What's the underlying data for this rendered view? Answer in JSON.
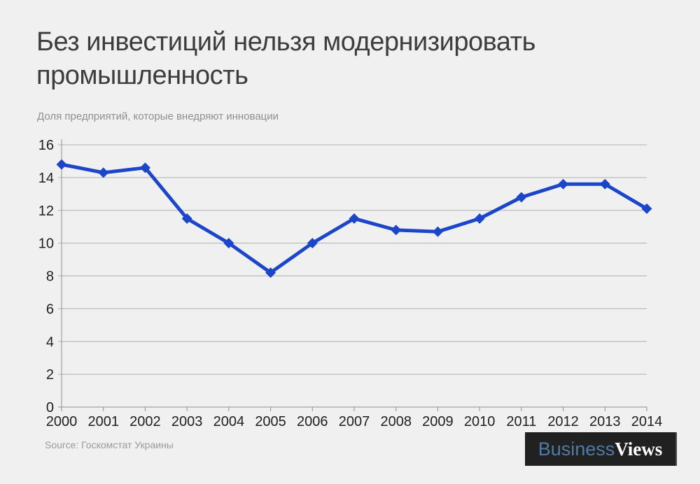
{
  "title": "Без инвестиций нельзя модернизировать промышленность",
  "subtitle": "Доля предприятий,  которые внедряют инновации",
  "chart_data": {
    "type": "line",
    "title": "Без инвестиций нельзя модернизировать промышленность",
    "subtitle": "Доля предприятий, которые внедряют инновации",
    "x": [
      2000,
      2001,
      2002,
      2003,
      2004,
      2005,
      2006,
      2007,
      2008,
      2009,
      2010,
      2011,
      2012,
      2013,
      2014
    ],
    "series": [
      {
        "name": "Доля предприятий, которые внедряют инновации",
        "values": [
          14.8,
          14.3,
          14.6,
          11.5,
          10.0,
          8.2,
          10.0,
          11.5,
          10.8,
          10.7,
          11.5,
          12.8,
          13.6,
          13.6,
          12.1
        ]
      }
    ],
    "xlabel": "",
    "ylabel": "",
    "ylim": [
      0,
      16
    ],
    "ytick_step": 2,
    "grid": true,
    "legend_position": "none",
    "line_color": "#1b46c9",
    "marker": "diamond",
    "gridline_color": "#b0b0b0",
    "axis_color": "#8f8f8f"
  },
  "footer": {
    "source": "Source: Госкомстат Украины",
    "logo": {
      "part1": "Business",
      "part2": "Views",
      "bg_color": "#212121",
      "part1_color": "#4d7ba8",
      "part2_color": "#ffffff"
    }
  }
}
